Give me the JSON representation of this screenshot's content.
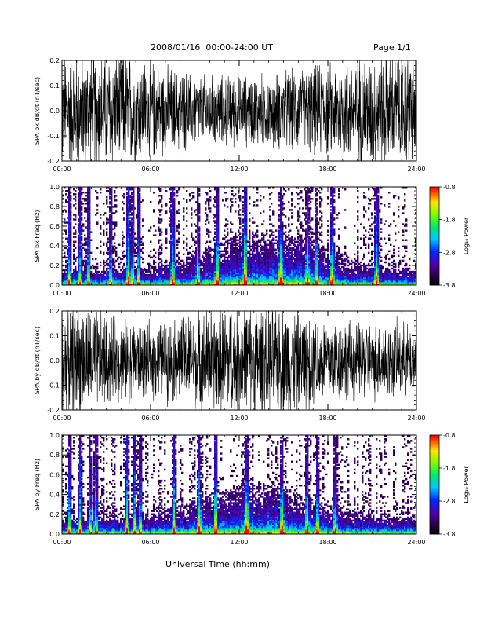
{
  "header": {
    "title": "2008/01/16  00:00-24:00 UT",
    "page": "Page 1/1"
  },
  "footer": {
    "xlabel": "Universal Time (hh:mm)"
  },
  "chart_data": [
    {
      "type": "line",
      "ylabel": "SPA bx dB/dt (nT/sec)",
      "xlim": [
        "00:00",
        "24:00"
      ],
      "xticks": [
        "00:00",
        "06:00",
        "12:00",
        "18:00",
        "24:00"
      ],
      "ylim": [
        -0.2,
        0.2
      ],
      "yticks": [
        "-0.2",
        "-0.1",
        "0.0",
        "0.1",
        "0.2"
      ],
      "envelope": {
        "x_hours": [
          0,
          2,
          4,
          6,
          8,
          10,
          12,
          14,
          16,
          18,
          20,
          22,
          24
        ],
        "amplitude": [
          0.2,
          0.2,
          0.2,
          0.17,
          0.14,
          0.12,
          0.12,
          0.13,
          0.14,
          0.16,
          0.19,
          0.2,
          0.2
        ]
      },
      "color": "#000000"
    },
    {
      "type": "heatmap",
      "ylabel": "SPA bx Freq (Hz)",
      "xlim": [
        "00:00",
        "24:00"
      ],
      "xticks": [
        "00:00",
        "06:00",
        "12:00",
        "18:00",
        "24:00"
      ],
      "ylim": [
        0.0,
        1.0
      ],
      "yticks": [
        "0.0",
        "0.2",
        "0.4",
        "0.6",
        "0.8",
        "1.0"
      ],
      "colorbar": {
        "label": "Log₁₀ Power",
        "range": [
          -3.8,
          -0.8
        ],
        "ticks": [
          "-0.8",
          "-1.8",
          "-2.8",
          "-3.8"
        ]
      },
      "bright_bursts_hours": [
        0.5,
        1.2,
        1.8,
        3.3,
        4.5,
        4.8,
        5.2,
        7.5,
        9.2,
        10.5,
        12.4,
        14.8,
        16.6,
        17.2,
        18.3,
        21.3
      ],
      "activity_hump": {
        "center_hours": 14,
        "max_freq_hz": 0.45
      }
    },
    {
      "type": "line",
      "ylabel": "SPA by dB/dt (nT/sec)",
      "xlim": [
        "00:00",
        "24:00"
      ],
      "xticks": [
        "00:00",
        "06:00",
        "12:00",
        "18:00",
        "24:00"
      ],
      "ylim": [
        -0.2,
        0.2
      ],
      "yticks": [
        "-0.2",
        "-0.1",
        "0.0",
        "0.1",
        "0.2"
      ],
      "envelope": {
        "x_hours": [
          0,
          2,
          4,
          6,
          8,
          10,
          12,
          14,
          16,
          18,
          20,
          22,
          24
        ],
        "amplitude": [
          0.2,
          0.18,
          0.14,
          0.13,
          0.15,
          0.18,
          0.2,
          0.2,
          0.18,
          0.15,
          0.13,
          0.14,
          0.12
        ]
      },
      "color": "#000000"
    },
    {
      "type": "heatmap",
      "ylabel": "SPA by Freq (Hz)",
      "xlim": [
        "00:00",
        "24:00"
      ],
      "xticks": [
        "00:00",
        "06:00",
        "12:00",
        "18:00",
        "24:00"
      ],
      "ylim": [
        0.0,
        1.0
      ],
      "yticks": [
        "0.0",
        "0.2",
        "0.4",
        "0.6",
        "0.8",
        "1.0"
      ],
      "colorbar": {
        "label": "Log₁₀ Power",
        "range": [
          -3.8,
          -0.8
        ],
        "ticks": [
          "-0.8",
          "-1.8",
          "-2.8",
          "-3.8"
        ]
      },
      "bright_bursts_hours": [
        0.5,
        1.2,
        1.9,
        2.3,
        4.4,
        4.9,
        5.3,
        7.6,
        9.3,
        10.4,
        12.5,
        14.9,
        16.6,
        17.3,
        18.5
      ],
      "activity_hump": {
        "center_hours": 13,
        "max_freq_hz": 0.4
      }
    }
  ]
}
